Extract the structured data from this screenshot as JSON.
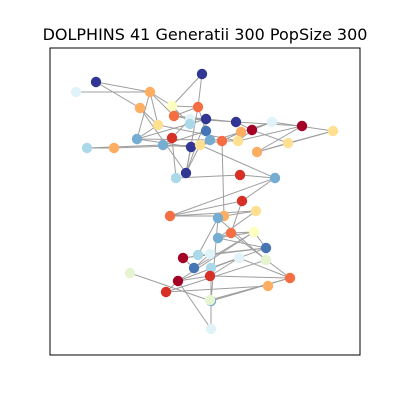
{
  "title": "DOLPHINS 41 Generatii 300 PopSize 300",
  "colors": {
    "edge": "#9e9e9e",
    "axes_frame": "#000000",
    "background": "#ffffff"
  },
  "graph": {
    "nodes": [
      {
        "id": 0,
        "color": "#313695"
      },
      {
        "id": 1,
        "color": "#313695"
      },
      {
        "id": 2,
        "color": "#e0f3f8"
      },
      {
        "id": 3,
        "color": "#fdae61"
      },
      {
        "id": 4,
        "color": "#fdae61"
      },
      {
        "id": 5,
        "color": "#ffffbf"
      },
      {
        "id": 6,
        "color": "#f46d43"
      },
      {
        "id": 7,
        "color": "#f46d43"
      },
      {
        "id": 8,
        "color": "#fee090"
      },
      {
        "id": 9,
        "color": "#74add1"
      },
      {
        "id": 10,
        "color": "#e0f3f8"
      },
      {
        "id": 11,
        "color": "#abd9e9"
      },
      {
        "id": 12,
        "color": "#313695"
      },
      {
        "id": 13,
        "color": "#4575b4"
      },
      {
        "id": 14,
        "color": "#d73027"
      },
      {
        "id": 15,
        "color": "#74add1"
      },
      {
        "id": 16,
        "color": "#313695"
      },
      {
        "id": 17,
        "color": "#313695"
      },
      {
        "id": 18,
        "color": "#74add1"
      },
      {
        "id": 19,
        "color": "#fee090"
      },
      {
        "id": 20,
        "color": "#f46d43"
      },
      {
        "id": 21,
        "color": "#fdae61"
      },
      {
        "id": 22,
        "color": "#fee090"
      },
      {
        "id": 23,
        "color": "#a50026"
      },
      {
        "id": 24,
        "color": "#313695"
      },
      {
        "id": 25,
        "color": "#a50026"
      },
      {
        "id": 26,
        "color": "#e0f3f8"
      },
      {
        "id": 27,
        "color": "#fdae61"
      },
      {
        "id": 28,
        "color": "#fee090"
      },
      {
        "id": 29,
        "color": "#fee090"
      },
      {
        "id": 30,
        "color": "#abd9e9"
      },
      {
        "id": 31,
        "color": "#fdae61"
      },
      {
        "id": 32,
        "color": "#abd9e9"
      },
      {
        "id": 33,
        "color": "#d73027"
      },
      {
        "id": 34,
        "color": "#74add1"
      },
      {
        "id": 35,
        "color": "#d73027"
      },
      {
        "id": 36,
        "color": "#f46d43"
      },
      {
        "id": 37,
        "color": "#fdae61"
      },
      {
        "id": 38,
        "color": "#fee090"
      },
      {
        "id": 39,
        "color": "#74add1"
      },
      {
        "id": 40,
        "color": "#f46d43"
      },
      {
        "id": 41,
        "color": "#ffffbf"
      },
      {
        "id": 42,
        "color": "#4575b4"
      },
      {
        "id": 43,
        "color": "#a50026"
      },
      {
        "id": 44,
        "color": "#e0f3f8"
      },
      {
        "id": 45,
        "color": "#4575b4"
      },
      {
        "id": 46,
        "color": "#abd9e9"
      },
      {
        "id": 47,
        "color": "#e0f3f8"
      },
      {
        "id": 48,
        "color": "#a50026"
      },
      {
        "id": 49,
        "color": "#d73027"
      },
      {
        "id": 50,
        "color": "#f46d43"
      },
      {
        "id": 51,
        "color": "#74add1"
      },
      {
        "id": 52,
        "color": "#e6f5d0"
      },
      {
        "id": 53,
        "color": "#d73027"
      },
      {
        "id": 54,
        "color": "#fdae61"
      },
      {
        "id": 55,
        "color": "#e0f3f8"
      },
      {
        "id": 56,
        "color": "#e6f5d0"
      },
      {
        "id": 57,
        "color": "#74add1"
      },
      {
        "id": 58,
        "color": "#abd9e9"
      },
      {
        "id": 59,
        "color": "#e6f5d0"
      }
    ],
    "edges": [
      [
        0,
        4
      ],
      [
        0,
        3
      ],
      [
        1,
        6
      ],
      [
        1,
        5
      ],
      [
        2,
        3
      ],
      [
        3,
        5
      ],
      [
        3,
        7
      ],
      [
        3,
        8
      ],
      [
        3,
        9
      ],
      [
        4,
        8
      ],
      [
        5,
        6
      ],
      [
        5,
        11
      ],
      [
        6,
        7
      ],
      [
        6,
        13
      ],
      [
        7,
        10
      ],
      [
        7,
        12
      ],
      [
        8,
        9
      ],
      [
        9,
        12
      ],
      [
        10,
        12
      ],
      [
        10,
        14
      ],
      [
        11,
        12
      ],
      [
        12,
        13
      ],
      [
        12,
        24
      ],
      [
        13,
        15
      ],
      [
        14,
        15
      ],
      [
        15,
        16
      ],
      [
        16,
        17
      ],
      [
        17,
        19
      ],
      [
        18,
        19
      ],
      [
        19,
        20
      ],
      [
        19,
        21
      ],
      [
        20,
        22
      ],
      [
        21,
        22
      ],
      [
        22,
        23
      ],
      [
        23,
        26
      ],
      [
        24,
        25
      ],
      [
        25,
        27
      ],
      [
        26,
        28
      ],
      [
        27,
        28
      ],
      [
        28,
        29
      ],
      [
        20,
        21
      ],
      [
        9,
        18
      ],
      [
        15,
        30
      ],
      [
        31,
        19
      ],
      [
        30,
        31
      ],
      [
        14,
        32
      ],
      [
        32,
        33
      ],
      [
        33,
        34
      ],
      [
        34,
        19
      ],
      [
        34,
        35
      ],
      [
        35,
        36
      ],
      [
        36,
        37
      ],
      [
        37,
        20
      ],
      [
        36,
        38
      ],
      [
        38,
        39
      ],
      [
        39,
        40
      ],
      [
        40,
        41
      ],
      [
        41,
        42
      ],
      [
        42,
        43
      ],
      [
        43,
        44
      ],
      [
        43,
        45
      ],
      [
        42,
        46
      ],
      [
        46,
        47
      ],
      [
        47,
        48
      ],
      [
        48,
        49
      ],
      [
        49,
        50
      ],
      [
        50,
        51
      ],
      [
        51,
        52
      ],
      [
        48,
        53
      ],
      [
        53,
        54
      ],
      [
        48,
        55
      ],
      [
        55,
        46
      ],
      [
        53,
        56
      ],
      [
        56,
        57
      ],
      [
        51,
        57
      ],
      [
        57,
        58
      ],
      [
        50,
        59
      ],
      [
        47,
        50
      ],
      [
        45,
        41
      ],
      [
        39,
        41
      ],
      [
        38,
        37
      ],
      [
        35,
        40
      ],
      [
        34,
        36
      ],
      [
        21,
        26
      ],
      [
        22,
        25
      ],
      [
        23,
        29
      ],
      [
        24,
        23
      ],
      [
        10,
        24
      ],
      [
        9,
        16
      ],
      [
        16,
        18
      ],
      [
        8,
        22
      ],
      [
        4,
        17
      ],
      [
        27,
        29
      ],
      [
        6,
        17
      ],
      [
        12,
        17
      ],
      [
        44,
        42
      ],
      [
        40,
        50
      ],
      [
        39,
        42
      ],
      [
        41,
        48
      ],
      [
        45,
        44
      ],
      [
        47,
        49
      ]
    ]
  }
}
